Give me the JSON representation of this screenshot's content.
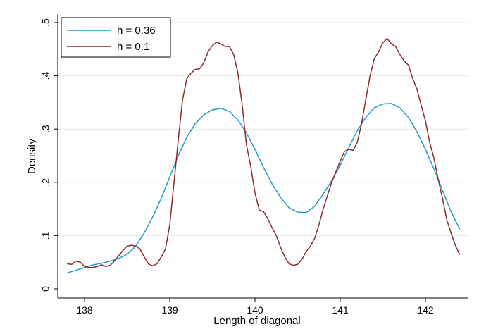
{
  "chart_data": {
    "type": "line",
    "title": "",
    "xlabel": "Length of diagonal",
    "ylabel": "Density",
    "xlim": [
      137.8,
      142.4
    ],
    "ylim": [
      0,
      0.5
    ],
    "x_ticks": [
      138,
      139,
      140,
      141,
      142
    ],
    "x_tick_labels": [
      "138",
      "139",
      "140",
      "141",
      "142"
    ],
    "y_ticks": [
      0,
      0.1,
      0.2,
      0.3,
      0.4,
      0.5
    ],
    "y_tick_labels": [
      "0",
      ".1",
      ".2",
      ".3",
      ".4",
      ".5"
    ],
    "grid": "horizontal",
    "legend_position": "top-left",
    "series": [
      {
        "name": "h = 0.36",
        "color": "#1f9bcf",
        "points": [
          [
            137.8,
            0.03
          ],
          [
            137.9,
            0.035
          ],
          [
            138.0,
            0.04
          ],
          [
            138.1,
            0.045
          ],
          [
            138.2,
            0.048
          ],
          [
            138.3,
            0.052
          ],
          [
            138.4,
            0.057
          ],
          [
            138.5,
            0.065
          ],
          [
            138.6,
            0.08
          ],
          [
            138.7,
            0.105
          ],
          [
            138.8,
            0.135
          ],
          [
            138.9,
            0.17
          ],
          [
            139.0,
            0.21
          ],
          [
            139.1,
            0.25
          ],
          [
            139.2,
            0.285
          ],
          [
            139.3,
            0.31
          ],
          [
            139.4,
            0.327
          ],
          [
            139.5,
            0.336
          ],
          [
            139.6,
            0.339
          ],
          [
            139.7,
            0.333
          ],
          [
            139.8,
            0.317
          ],
          [
            139.9,
            0.293
          ],
          [
            140.0,
            0.262
          ],
          [
            140.1,
            0.228
          ],
          [
            140.2,
            0.197
          ],
          [
            140.3,
            0.172
          ],
          [
            140.4,
            0.152
          ],
          [
            140.5,
            0.144
          ],
          [
            140.6,
            0.143
          ],
          [
            140.7,
            0.155
          ],
          [
            140.8,
            0.178
          ],
          [
            140.9,
            0.203
          ],
          [
            141.0,
            0.232
          ],
          [
            141.1,
            0.265
          ],
          [
            141.2,
            0.297
          ],
          [
            141.3,
            0.322
          ],
          [
            141.4,
            0.34
          ],
          [
            141.5,
            0.347
          ],
          [
            141.6,
            0.348
          ],
          [
            141.7,
            0.34
          ],
          [
            141.8,
            0.322
          ],
          [
            141.9,
            0.295
          ],
          [
            142.0,
            0.262
          ],
          [
            142.1,
            0.225
          ],
          [
            142.2,
            0.185
          ],
          [
            142.3,
            0.145
          ],
          [
            142.4,
            0.113
          ]
        ]
      },
      {
        "name": "h = 0.1",
        "color": "#8b2a2a",
        "points": [
          [
            137.8,
            0.047
          ],
          [
            137.85,
            0.046
          ],
          [
            137.9,
            0.052
          ],
          [
            137.95,
            0.05
          ],
          [
            138.0,
            0.042
          ],
          [
            138.05,
            0.04
          ],
          [
            138.1,
            0.04
          ],
          [
            138.15,
            0.042
          ],
          [
            138.2,
            0.045
          ],
          [
            138.25,
            0.042
          ],
          [
            138.3,
            0.044
          ],
          [
            138.35,
            0.052
          ],
          [
            138.4,
            0.062
          ],
          [
            138.45,
            0.072
          ],
          [
            138.5,
            0.08
          ],
          [
            138.55,
            0.082
          ],
          [
            138.6,
            0.08
          ],
          [
            138.65,
            0.075
          ],
          [
            138.7,
            0.06
          ],
          [
            138.75,
            0.047
          ],
          [
            138.8,
            0.043
          ],
          [
            138.85,
            0.047
          ],
          [
            138.9,
            0.06
          ],
          [
            138.95,
            0.075
          ],
          [
            139.0,
            0.12
          ],
          [
            139.05,
            0.2
          ],
          [
            139.1,
            0.28
          ],
          [
            139.15,
            0.355
          ],
          [
            139.2,
            0.395
          ],
          [
            139.25,
            0.405
          ],
          [
            139.3,
            0.412
          ],
          [
            139.35,
            0.413
          ],
          [
            139.4,
            0.425
          ],
          [
            139.45,
            0.445
          ],
          [
            139.5,
            0.457
          ],
          [
            139.55,
            0.463
          ],
          [
            139.6,
            0.46
          ],
          [
            139.65,
            0.455
          ],
          [
            139.7,
            0.455
          ],
          [
            139.75,
            0.44
          ],
          [
            139.8,
            0.405
          ],
          [
            139.85,
            0.345
          ],
          [
            139.9,
            0.27
          ],
          [
            139.95,
            0.23
          ],
          [
            140.0,
            0.18
          ],
          [
            140.05,
            0.148
          ],
          [
            140.1,
            0.145
          ],
          [
            140.15,
            0.132
          ],
          [
            140.2,
            0.115
          ],
          [
            140.25,
            0.1
          ],
          [
            140.3,
            0.078
          ],
          [
            140.35,
            0.06
          ],
          [
            140.4,
            0.047
          ],
          [
            140.45,
            0.044
          ],
          [
            140.5,
            0.046
          ],
          [
            140.55,
            0.055
          ],
          [
            140.6,
            0.07
          ],
          [
            140.65,
            0.08
          ],
          [
            140.7,
            0.095
          ],
          [
            140.75,
            0.12
          ],
          [
            140.8,
            0.15
          ],
          [
            140.85,
            0.175
          ],
          [
            140.9,
            0.2
          ],
          [
            140.95,
            0.22
          ],
          [
            141.0,
            0.24
          ],
          [
            141.05,
            0.258
          ],
          [
            141.1,
            0.262
          ],
          [
            141.15,
            0.26
          ],
          [
            141.2,
            0.275
          ],
          [
            141.25,
            0.31
          ],
          [
            141.3,
            0.355
          ],
          [
            141.35,
            0.4
          ],
          [
            141.4,
            0.432
          ],
          [
            141.45,
            0.445
          ],
          [
            141.5,
            0.462
          ],
          [
            141.55,
            0.47
          ],
          [
            141.6,
            0.46
          ],
          [
            141.65,
            0.455
          ],
          [
            141.7,
            0.44
          ],
          [
            141.75,
            0.428
          ],
          [
            141.8,
            0.42
          ],
          [
            141.85,
            0.395
          ],
          [
            141.9,
            0.375
          ],
          [
            141.95,
            0.345
          ],
          [
            142.0,
            0.315
          ],
          [
            142.05,
            0.275
          ],
          [
            142.1,
            0.245
          ],
          [
            142.15,
            0.205
          ],
          [
            142.2,
            0.17
          ],
          [
            142.25,
            0.13
          ],
          [
            142.3,
            0.105
          ],
          [
            142.35,
            0.082
          ],
          [
            142.4,
            0.065
          ]
        ]
      }
    ]
  }
}
